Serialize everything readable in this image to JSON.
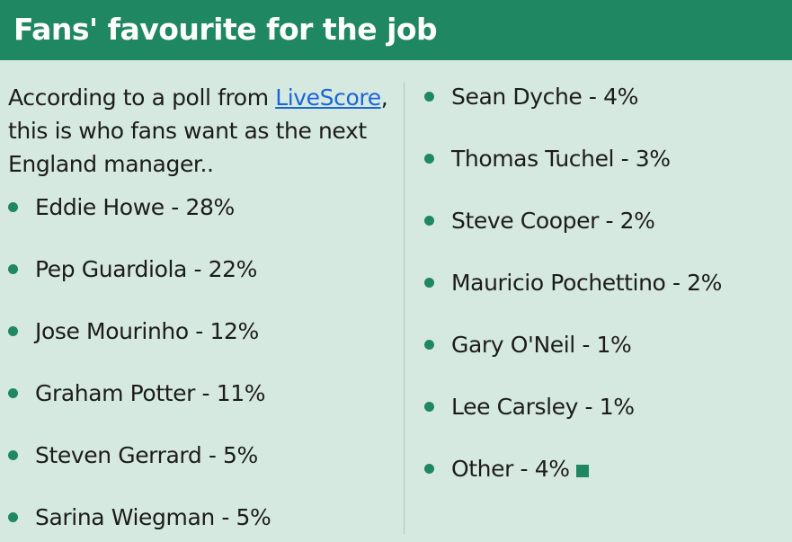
{
  "header": {
    "title": "Fans' favourite for the job"
  },
  "intro": {
    "before_link": "According to a poll from ",
    "link_text": "LiveScore",
    "after_link": ", this is who fans want as the next England manager.."
  },
  "left_list": [
    "Eddie Howe - 28%",
    "Pep Guardiola - 22%",
    "Jose Mourinho - 12%",
    "Graham Potter - 11%",
    "Steven Gerrard - 5%",
    "Sarina Wiegman - 5%"
  ],
  "right_list": [
    "Sean Dyche - 4%",
    "Thomas Tuchel - 3%",
    "Steve Cooper - 2%",
    "Mauricio Pochettino - 2%",
    "Gary O'Neil - 1%",
    "Lee Carsley - 1%",
    "Other - 4%"
  ],
  "colors": {
    "header_background": "#1f8762",
    "page_background": "#d6e9e0",
    "bullet": "#1f8762",
    "link": "#1a66d9"
  }
}
